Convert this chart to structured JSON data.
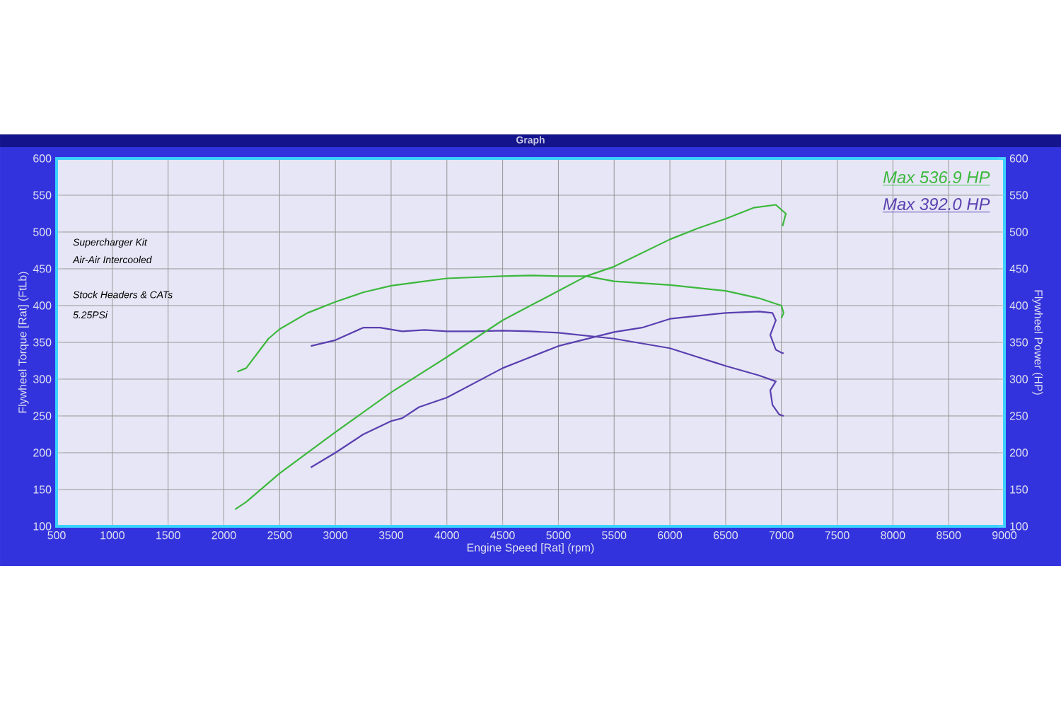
{
  "chart_data": {
    "type": "line",
    "title": "Graph",
    "xlabel": "Engine Speed [Rat] (rpm)",
    "ylabel": "Flywheel Torque [Rat] (FtLb)",
    "y2label": "Flywheel Power (HP)",
    "xlim": [
      500,
      9000
    ],
    "xticks": [
      500,
      1000,
      1500,
      2000,
      2500,
      3000,
      3500,
      4000,
      4500,
      5000,
      5500,
      6000,
      6500,
      7000,
      7500,
      8000,
      8500,
      9000
    ],
    "ylim": [
      100,
      600
    ],
    "yticks": [
      100,
      150,
      200,
      250,
      300,
      350,
      400,
      450,
      500,
      550,
      600
    ],
    "y2lim": [
      100,
      600
    ],
    "y2ticks": [
      100,
      150,
      200,
      250,
      300,
      350,
      400,
      450,
      500,
      550,
      600
    ],
    "grid": true,
    "marker": "none",
    "line_style": "solid",
    "annotations": [
      "Supercharger Kit",
      "Air-Air Intercooled",
      "Stock Headers & CATs",
      "5.25PSi",
      "Max 536.9 HP",
      "Max 392.0 HP"
    ],
    "series": [
      {
        "color": "#3cb83c",
        "x": [
          2120,
          2200,
          2300,
          2400,
          2500,
          2750,
          3000,
          3250,
          3500,
          3750,
          4000,
          4500,
          4750,
          5000,
          5250,
          5500,
          6000,
          6500,
          6800,
          7000,
          7020,
          7000
        ],
        "values": [
          310,
          315,
          335,
          355,
          368,
          390,
          405,
          418,
          427,
          432,
          437,
          440,
          441,
          440,
          440,
          433,
          428,
          420,
          410,
          400,
          390,
          383
        ]
      },
      {
        "color": "#3cb83c",
        "axis": "y2",
        "x": [
          2100,
          2200,
          2500,
          3000,
          3500,
          4000,
          4500,
          5000,
          5250,
          5500,
          6000,
          6250,
          6500,
          6750,
          6950,
          7040,
          7010
        ],
        "values": [
          123,
          133,
          172,
          228,
          282,
          330,
          380,
          420,
          440,
          453,
          490,
          505,
          518,
          533,
          537,
          525,
          508
        ]
      },
      {
        "color": "#5a3fb0",
        "x": [
          2780,
          3000,
          3250,
          3400,
          3600,
          3800,
          4000,
          4250,
          4500,
          4750,
          5000,
          5500,
          6000,
          6500,
          6800,
          6950,
          6900,
          6920,
          6980,
          7020
        ],
        "values": [
          345,
          353,
          370,
          370,
          365,
          367,
          365,
          365,
          366,
          365,
          363,
          355,
          342,
          318,
          305,
          297,
          285,
          265,
          252,
          250
        ]
      },
      {
        "color": "#5a3fb0",
        "axis": "y2",
        "x": [
          2780,
          3000,
          3250,
          3500,
          3600,
          3750,
          4000,
          4500,
          5000,
          5500,
          5750,
          6000,
          6500,
          6800,
          6920,
          6950,
          6900,
          6950,
          7000,
          7020
        ],
        "values": [
          180,
          200,
          225,
          243,
          247,
          262,
          275,
          315,
          345,
          364,
          370,
          382,
          390,
          392,
          390,
          380,
          360,
          340,
          336,
          335
        ]
      }
    ]
  }
}
